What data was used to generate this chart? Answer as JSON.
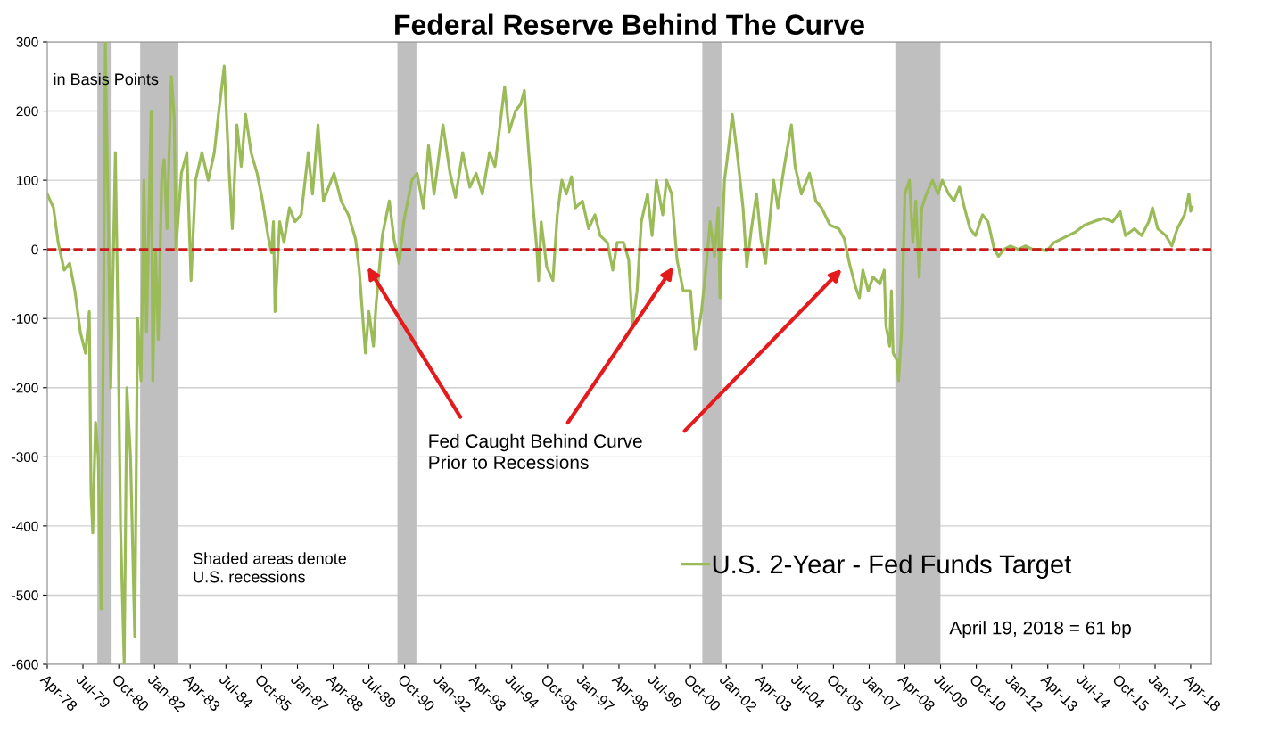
{
  "chart_data": {
    "type": "line",
    "title": "Federal Reserve Behind The Curve",
    "x": [
      "1978-04-01",
      "1978-06-20",
      "1978-08-18",
      "1978-11-03",
      "1979-01-12",
      "1979-03-20",
      "1979-05-29",
      "1979-08-03",
      "1979-09-20",
      "1979-10-12",
      "1979-11-03",
      "1979-12-09",
      "1980-01-12",
      "1980-02-18",
      "1980-03-20",
      "1980-04-12",
      "1980-05-18",
      "1980-06-20",
      "1980-08-18",
      "1980-09-20",
      "1980-10-23",
      "1980-12-09",
      "1981-01-12",
      "1981-02-28",
      "1981-04-23",
      "1981-05-29",
      "1981-07-12",
      "1981-08-18",
      "1981-09-20",
      "1981-11-18",
      "1981-12-09",
      "1982-01-12",
      "1982-02-18",
      "1982-04-01",
      "1982-05-03",
      "1982-06-09",
      "1982-08-03",
      "1982-09-09",
      "1982-10-01",
      "1982-12-09",
      "1983-02-18",
      "1983-04-12",
      "1983-06-09",
      "1983-08-29",
      "1983-11-18",
      "1984-02-03",
      "1984-04-01",
      "1984-06-09",
      "1984-08-03",
      "1984-09-20",
      "1984-11-18",
      "1985-01-12",
      "1985-03-09",
      "1985-05-18",
      "1985-08-03",
      "1985-10-12",
      "1985-12-20",
      "1986-02-03",
      "1986-02-28",
      "1986-03-20",
      "1986-05-18",
      "1986-07-12",
      "1986-09-20",
      "1986-11-29",
      "1987-02-18",
      "1987-05-18",
      "1987-07-12",
      "1987-09-20",
      "1987-11-29",
      "1988-02-03",
      "1988-04-12",
      "1988-07-12",
      "1988-10-12",
      "1989-01-12",
      "1989-02-28",
      "1989-05-18",
      "1989-07-01",
      "1989-08-29",
      "1989-10-01",
      "1989-12-20",
      "1990-03-20",
      "1990-05-18",
      "1990-07-23",
      "1990-09-20",
      "1991-01-01",
      "1991-03-09",
      "1991-05-29",
      "1991-08-03",
      "1991-10-12",
      "1992-02-03",
      "1992-05-03",
      "1992-07-12",
      "1992-10-12",
      "1993-01-12",
      "1993-04-01",
      "1993-06-20",
      "1993-09-20",
      "1993-11-29",
      "1994-04-01",
      "1994-05-29",
      "1994-08-18",
      "1994-10-23",
      "1994-12-09",
      "1995-02-03",
      "1995-04-01",
      "1995-05-18",
      "1995-06-09",
      "1995-07-12",
      "1995-09-20",
      "1995-12-09",
      "1996-02-03",
      "1996-04-01",
      "1996-05-29",
      "1996-08-03",
      "1996-09-20",
      "1996-12-20",
      "1997-03-09",
      "1997-05-29",
      "1997-08-03",
      "1997-11-03",
      "1998-01-12",
      "1998-03-09",
      "1998-05-29",
      "1998-08-03",
      "1998-09-20",
      "1998-11-18",
      "1999-01-12",
      "1999-04-01",
      "1999-05-29",
      "1999-07-23",
      "1999-10-12",
      "1999-11-29",
      "2000-02-03",
      "2000-04-12",
      "2000-07-01",
      "2000-10-01",
      "2000-11-29",
      "2001-02-18",
      "2001-04-23",
      "2001-06-09",
      "2001-08-03",
      "2001-09-20",
      "2001-10-12",
      "2001-12-09",
      "2002-01-23",
      "2002-03-20",
      "2002-05-29",
      "2002-08-03",
      "2002-09-20",
      "2002-11-18",
      "2003-01-23",
      "2003-03-20",
      "2003-05-18",
      "2003-08-29",
      "2003-10-23",
      "2004-01-12",
      "2004-04-12",
      "2004-05-29",
      "2004-08-18",
      "2004-11-29",
      "2005-02-18",
      "2005-05-03",
      "2005-08-18",
      "2005-12-09",
      "2006-02-18",
      "2006-04-23",
      "2006-07-12",
      "2006-08-29",
      "2006-10-12",
      "2006-12-20",
      "2007-02-18",
      "2007-05-18",
      "2007-07-12",
      "2007-08-03",
      "2007-09-20",
      "2007-10-12",
      "2007-11-03",
      "2007-12-20",
      "2008-01-12",
      "2008-02-18",
      "2008-04-01",
      "2008-05-29",
      "2008-07-12",
      "2008-08-18",
      "2008-10-01",
      "2008-11-03",
      "2009-01-01",
      "2009-03-20",
      "2009-05-29",
      "2009-07-23",
      "2009-10-12",
      "2009-12-20",
      "2010-02-28",
      "2010-05-03",
      "2010-07-12",
      "2010-09-20",
      "2010-12-20",
      "2011-02-28",
      "2011-05-18",
      "2011-07-12",
      "2011-09-20",
      "2011-12-09",
      "2012-03-20",
      "2012-06-20",
      "2012-09-20",
      "2013-01-01",
      "2013-03-20",
      "2013-06-20",
      "2013-09-20",
      "2013-12-20",
      "2014-03-20",
      "2014-07-12",
      "2014-11-03",
      "2015-03-20",
      "2015-07-12",
      "2015-10-12",
      "2015-12-20",
      "2016-04-12",
      "2016-07-12",
      "2016-10-12",
      "2016-11-29",
      "2017-02-03",
      "2017-05-18",
      "2017-08-03",
      "2017-10-12",
      "2018-01-12",
      "2018-03-09",
      "2018-04-01",
      "2018-04-19"
    ],
    "series": [
      {
        "name": "U.S. 2-Year - Fed Funds Target",
        "color": "#9bbb59",
        "values": [
          80,
          60,
          10,
          -30,
          -20,
          -60,
          -120,
          -150,
          -90,
          -350,
          -410,
          -250,
          -300,
          -520,
          -100,
          300,
          50,
          -200,
          140,
          -100,
          -400,
          -600,
          -200,
          -300,
          -560,
          -100,
          -190,
          100,
          -120,
          200,
          -190,
          0,
          -130,
          100,
          130,
          30,
          250,
          190,
          0,
          110,
          140,
          -45,
          100,
          140,
          100,
          140,
          200,
          265,
          130,
          30,
          180,
          120,
          195,
          140,
          110,
          70,
          20,
          -5,
          40,
          -90,
          40,
          10,
          60,
          40,
          50,
          140,
          80,
          180,
          70,
          90,
          110,
          70,
          50,
          15,
          -30,
          -150,
          -90,
          -140,
          -80,
          20,
          70,
          15,
          -20,
          40,
          100,
          110,
          60,
          150,
          80,
          180,
          110,
          75,
          140,
          90,
          110,
          80,
          140,
          120,
          235,
          170,
          200,
          210,
          230,
          140,
          60,
          0,
          -45,
          40,
          -25,
          -45,
          50,
          100,
          80,
          105,
          60,
          70,
          30,
          50,
          20,
          10,
          -30,
          10,
          10,
          -15,
          -110,
          -60,
          40,
          80,
          20,
          100,
          50,
          100,
          80,
          -15,
          -60,
          -60,
          -145,
          -90,
          -20,
          40,
          -10,
          60,
          -70,
          100,
          140,
          195,
          130,
          60,
          -25,
          30,
          80,
          15,
          -20,
          100,
          60,
          120,
          180,
          120,
          80,
          110,
          70,
          60,
          35,
          30,
          15,
          -20,
          -55,
          -70,
          -30,
          -60,
          -40,
          -50,
          -30,
          -110,
          -140,
          -60,
          -150,
          -160,
          -190,
          -120,
          80,
          100,
          10,
          70,
          -40,
          60,
          80,
          100,
          80,
          100,
          80,
          70,
          90,
          60,
          30,
          20,
          50,
          40,
          0,
          -10,
          0,
          5,
          0,
          5,
          0,
          0,
          -2,
          10,
          15,
          20,
          25,
          35,
          40,
          45,
          40,
          55,
          20,
          30,
          20,
          40,
          60,
          30,
          20,
          5,
          30,
          50,
          80,
          55,
          61
        ]
      }
    ],
    "xlim": [
      "1978-04-01",
      "2018-12-20"
    ],
    "xticks": [
      {
        "value": "1978-04",
        "label": "Apr-78"
      },
      {
        "value": "1979-07",
        "label": "Jul-79"
      },
      {
        "value": "1980-10",
        "label": "Oct-80"
      },
      {
        "value": "1982-01",
        "label": "Jan-82"
      },
      {
        "value": "1983-04",
        "label": "Apr-83"
      },
      {
        "value": "1984-07",
        "label": "Jul-84"
      },
      {
        "value": "1985-10",
        "label": "Oct-85"
      },
      {
        "value": "1987-01",
        "label": "Jan-87"
      },
      {
        "value": "1988-04",
        "label": "Apr-88"
      },
      {
        "value": "1989-07",
        "label": "Jul-89"
      },
      {
        "value": "1990-10",
        "label": "Oct-90"
      },
      {
        "value": "1992-01",
        "label": "Jan-92"
      },
      {
        "value": "1993-04",
        "label": "Apr-93"
      },
      {
        "value": "1994-07",
        "label": "Jul-94"
      },
      {
        "value": "1995-10",
        "label": "Oct-95"
      },
      {
        "value": "1997-01",
        "label": "Jan-97"
      },
      {
        "value": "1998-04",
        "label": "Apr-98"
      },
      {
        "value": "1999-07",
        "label": "Jul-99"
      },
      {
        "value": "2000-10",
        "label": "Oct-00"
      },
      {
        "value": "2002-01",
        "label": "Jan-02"
      },
      {
        "value": "2003-04",
        "label": "Apr-03"
      },
      {
        "value": "2004-07",
        "label": "Jul-04"
      },
      {
        "value": "2005-10",
        "label": "Oct-05"
      },
      {
        "value": "2007-01",
        "label": "Jan-07"
      },
      {
        "value": "2008-04",
        "label": "Apr-08"
      },
      {
        "value": "2009-07",
        "label": "Jul-09"
      },
      {
        "value": "2010-10",
        "label": "Oct-10"
      },
      {
        "value": "2012-01",
        "label": "Jan-12"
      },
      {
        "value": "2013-04",
        "label": "Apr-13"
      },
      {
        "value": "2014-07",
        "label": "Jul-14"
      },
      {
        "value": "2015-10",
        "label": "Oct-15"
      },
      {
        "value": "2017-01",
        "label": "Jan-17"
      },
      {
        "value": "2018-04",
        "label": "Apr-18"
      }
    ],
    "ylim": [
      -600,
      300
    ],
    "yticks": [
      -600,
      -500,
      -400,
      -300,
      -200,
      -100,
      0,
      100,
      200,
      300
    ],
    "grid": "y",
    "legend": "bottom right",
    "marker": "none",
    "line_style": "solid",
    "ref_lines": [
      {
        "axis": "y",
        "value": 0,
        "color": "#cc1a1a",
        "line_style": "dashed"
      }
    ],
    "bands": [
      {
        "axis": "x",
        "from": "1980-01-01",
        "to": "1980-07-01",
        "color": "#bfbfbf"
      },
      {
        "axis": "x",
        "from": "1981-07-01",
        "to": "1982-11-01",
        "color": "#bfbfbf"
      },
      {
        "axis": "x",
        "from": "1990-07-01",
        "to": "1991-03-01",
        "color": "#bfbfbf"
      },
      {
        "axis": "x",
        "from": "2001-03-01",
        "to": "2001-11-01",
        "color": "#bfbfbf"
      },
      {
        "axis": "x",
        "from": "2007-12-01",
        "to": "2009-06-30",
        "color": "#bfbfbf"
      }
    ],
    "annotations": [
      "in Basis Points",
      "Shaded areas denote\nU.S. recessions",
      "April 19, 2018 = 61 bp",
      "Fed Caught Behind Curve\nPrior to Recessions"
    ]
  }
}
